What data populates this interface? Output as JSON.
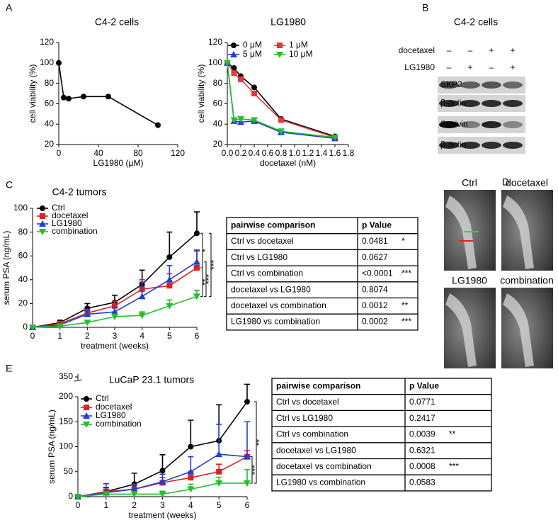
{
  "panels": [
    "A",
    "B",
    "C",
    "D",
    "E"
  ],
  "chart_data": [
    {
      "type": "line",
      "title": "C4-2 cells",
      "xlabel": "LG1980 (μM)",
      "ylabel": "cell viability (%)",
      "x": [
        0,
        5,
        10,
        25,
        50,
        100
      ],
      "xlim": [
        0,
        120
      ],
      "xticks": [
        0,
        40,
        80,
        120
      ],
      "ylim": [
        20,
        120
      ],
      "yticks": [
        20,
        40,
        60,
        80,
        100,
        120
      ],
      "series": [
        {
          "name": null,
          "color": "#000000",
          "marker": "circle",
          "values": [
            100,
            66,
            65,
            67,
            67,
            39
          ]
        }
      ]
    },
    {
      "type": "line",
      "title": "LG1980",
      "xlabel": "docetaxel (nM)",
      "ylabel": "cell viability (%)",
      "x": [
        0,
        0.1,
        0.2,
        0.4,
        0.8,
        1.6
      ],
      "xlim": [
        0,
        1.8
      ],
      "xticks": [
        {
          "value": 0,
          "label": "0.0"
        },
        0.2,
        0.4,
        0.6,
        0.8,
        {
          "value": 1,
          "label": "1.0"
        },
        1.2,
        1.4,
        1.6,
        1.8
      ],
      "ylim": [
        20,
        120
      ],
      "yticks": [
        20,
        40,
        60,
        80,
        100,
        120
      ],
      "series": [
        {
          "name": "0 μM",
          "color": "#000000",
          "marker": "circle",
          "values": [
            100,
            95,
            87,
            76,
            45,
            28
          ]
        },
        {
          "name": "1 μM",
          "color": "#e8363a",
          "marker": "square",
          "values": [
            100,
            90,
            84,
            70,
            44,
            27
          ]
        },
        {
          "name": "5 μM",
          "color": "#1f3fd6",
          "marker": "triangle",
          "values": [
            100,
            43,
            42,
            43,
            32,
            26
          ]
        },
        {
          "name": "10 μM",
          "color": "#22c02a",
          "marker": "triangle-down",
          "values": [
            100,
            44,
            45,
            44,
            33,
            27
          ]
        }
      ]
    },
    {
      "type": "line",
      "title": "C4-2 tumors",
      "xlabel": "treatment (weeks)",
      "ylabel": "serum PSA (ng/mL)",
      "x": [
        0,
        1,
        2,
        3,
        4,
        5,
        6
      ],
      "xlim": [
        0,
        6
      ],
      "xticks": [
        0,
        1,
        2,
        3,
        4,
        5,
        6
      ],
      "ylim": [
        0,
        100
      ],
      "yticks": [
        0,
        20,
        40,
        60,
        80,
        100
      ],
      "series": [
        {
          "name": "Ctrl",
          "color": "#000000",
          "marker": "circle",
          "values": [
            0,
            4,
            16,
            21,
            36,
            59,
            79
          ],
          "errors": [
            1,
            2,
            4,
            6,
            12,
            21,
            18
          ]
        },
        {
          "name": "docetaxel",
          "color": "#e02020",
          "marker": "square",
          "values": [
            0,
            3,
            12,
            18,
            32,
            35,
            50
          ],
          "errors": [
            0,
            2,
            3,
            4,
            8,
            10,
            14
          ]
        },
        {
          "name": "LG1980",
          "color": "#1f3fd6",
          "marker": "triangle",
          "values": [
            0,
            2,
            11,
            13,
            26,
            40,
            55
          ],
          "errors": [
            0,
            1,
            3,
            4,
            12,
            12,
            10
          ]
        },
        {
          "name": "combination",
          "color": "#22c02a",
          "marker": "triangle-down",
          "values": [
            0,
            1,
            4,
            9,
            10,
            18,
            26
          ],
          "errors": [
            0,
            1,
            2,
            2,
            3,
            5,
            5
          ]
        }
      ],
      "significance": [
        "*",
        "**",
        "***",
        "***"
      ]
    },
    {
      "type": "line",
      "title": "LuCaP 23.1 tumors",
      "xlabel": "treatment (weeks)",
      "ylabel": "serum PSA (ng/mL)",
      "x": [
        0,
        1,
        2,
        3,
        4,
        5,
        6
      ],
      "xlim": [
        0,
        6
      ],
      "xticks": [
        0,
        1,
        2,
        3,
        4,
        5,
        6
      ],
      "ylim": [
        0,
        200
      ],
      "yticks": [
        0,
        50,
        100,
        150,
        200
      ],
      "yticks_above_break": [
        350
      ],
      "series": [
        {
          "name": "Ctrl",
          "color": "#000000",
          "marker": "circle",
          "values": [
            0,
            10,
            25,
            52,
            100,
            112,
            190
          ],
          "errors": [
            2,
            8,
            22,
            32,
            53,
            72,
            35
          ]
        },
        {
          "name": "docetaxel",
          "color": "#e02020",
          "marker": "square",
          "values": [
            0,
            10,
            15,
            28,
            38,
            50,
            80
          ],
          "errors": [
            0,
            5,
            8,
            10,
            12,
            15,
            12
          ]
        },
        {
          "name": "LG1980",
          "color": "#1f3fd6",
          "marker": "triangle",
          "values": [
            0,
            8,
            15,
            30,
            50,
            85,
            80
          ],
          "errors": [
            0,
            18,
            10,
            15,
            30,
            60,
            70
          ]
        },
        {
          "name": "combination",
          "color": "#22c02a",
          "marker": "triangle-down",
          "values": [
            0,
            5,
            5,
            5,
            15,
            27,
            27
          ],
          "errors": [
            0,
            3,
            5,
            6,
            10,
            12,
            27
          ]
        }
      ],
      "significance": [
        "**",
        "***"
      ]
    }
  ],
  "tables": [
    {
      "header": [
        "pairwise comparison",
        "p Value"
      ],
      "rows": [
        [
          "Ctrl vs docetaxel",
          "0.0481",
          "*"
        ],
        [
          "Ctrl vs LG1980",
          "0.0627",
          ""
        ],
        [
          "Ctrl vs combination",
          "<0.0001",
          "***"
        ],
        [
          "docetaxel vs LG1980",
          "0.8074",
          ""
        ],
        [
          "docetaxel vs combination",
          "0.0012",
          "**"
        ],
        [
          "LG1980 vs combination",
          "0.0002",
          "***"
        ]
      ]
    },
    {
      "header": [
        "pairwise comparison",
        "p Value"
      ],
      "rows": [
        [
          "Ctrl vs docetaxel",
          "0.0771",
          ""
        ],
        [
          "Ctrl vs LG1980",
          "0.2417",
          ""
        ],
        [
          "Ctrl vs combination",
          "0.0039",
          "**"
        ],
        [
          "docetaxel vs LG1980",
          "0.6321",
          ""
        ],
        [
          "docetaxel vs combination",
          "0.0008",
          "***"
        ],
        [
          "LG1980 vs combination",
          "0.0583",
          ""
        ]
      ]
    }
  ],
  "blot": {
    "title": "C4-2 cells",
    "conditions": [
      {
        "label": "docetaxel",
        "signs": [
          "–",
          "–",
          "+",
          "+"
        ]
      },
      {
        "label": "LG1980",
        "signs": [
          "–",
          "+",
          "–",
          "+"
        ]
      }
    ],
    "bands": [
      "SKP2",
      "β-actin",
      "Suvivin",
      "β-actin"
    ]
  },
  "xray": {
    "labels": [
      "Ctrl",
      "docetaxel",
      "LG1980",
      "combination"
    ]
  }
}
